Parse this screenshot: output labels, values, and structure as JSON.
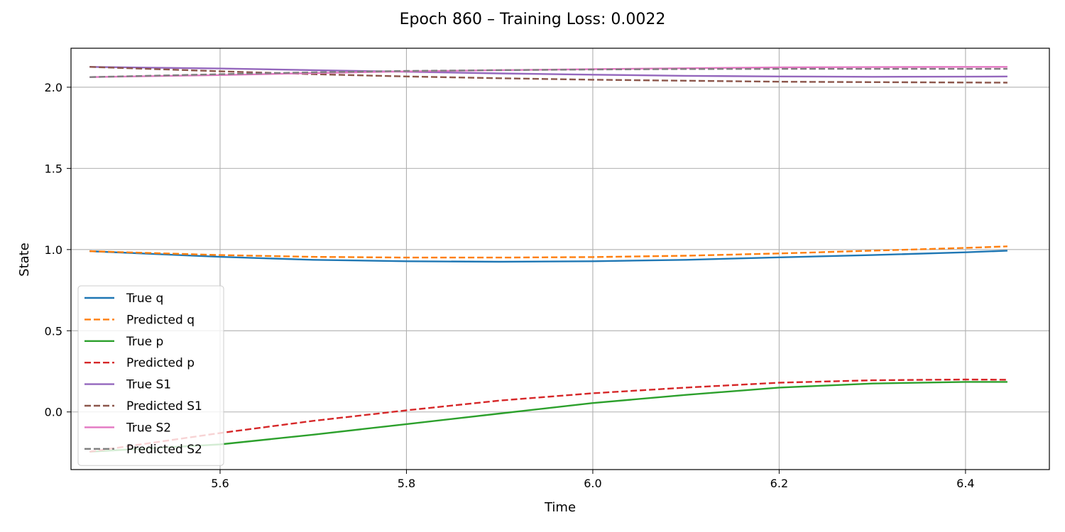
{
  "chart_data": {
    "type": "line",
    "title": "Epoch 860 – Training Loss: 0.0022",
    "xlabel": "Time",
    "ylabel": "State",
    "xlim": [
      5.44,
      6.49
    ],
    "ylim": [
      -0.355,
      2.24
    ],
    "xticks": [
      5.6,
      5.8,
      6.0,
      6.2,
      6.4
    ],
    "xtick_labels": [
      "5.6",
      "5.8",
      "6.0",
      "6.2",
      "6.4"
    ],
    "yticks": [
      0.0,
      0.5,
      1.0,
      1.5,
      2.0
    ],
    "ytick_labels": [
      "0.0",
      "0.5",
      "1.0",
      "1.5",
      "2.0"
    ],
    "grid": true,
    "legend_position": "lower-left",
    "x": [
      5.46,
      5.6,
      5.7,
      5.8,
      5.9,
      6.0,
      6.1,
      6.2,
      6.3,
      6.4,
      6.445
    ],
    "series": [
      {
        "name": "True q",
        "color": "#1f77b4",
        "dash": "solid",
        "values": [
          0.99,
          0.955,
          0.937,
          0.928,
          0.925,
          0.928,
          0.937,
          0.952,
          0.966,
          0.983,
          0.993
        ]
      },
      {
        "name": "Predicted q",
        "color": "#ff7f0e",
        "dash": "dashed",
        "values": [
          0.99,
          0.966,
          0.955,
          0.951,
          0.951,
          0.954,
          0.962,
          0.976,
          0.993,
          1.01,
          1.02
        ]
      },
      {
        "name": "True p",
        "color": "#2ca02c",
        "dash": "solid",
        "values": [
          -0.245,
          -0.2,
          -0.14,
          -0.075,
          -0.01,
          0.055,
          0.105,
          0.15,
          0.175,
          0.185,
          0.185
        ]
      },
      {
        "name": "Predicted p",
        "color": "#d62728",
        "dash": "dashed",
        "values": [
          -0.245,
          -0.13,
          -0.055,
          0.01,
          0.07,
          0.115,
          0.15,
          0.18,
          0.195,
          0.2,
          0.198
        ]
      },
      {
        "name": "True S1",
        "color": "#9467bd",
        "dash": "solid",
        "values": [
          2.125,
          2.115,
          2.105,
          2.095,
          2.085,
          2.077,
          2.07,
          2.066,
          2.064,
          2.065,
          2.066
        ]
      },
      {
        "name": "Predicted S1",
        "color": "#8c564b",
        "dash": "dashed",
        "values": [
          2.125,
          2.098,
          2.08,
          2.066,
          2.055,
          2.046,
          2.04,
          2.034,
          2.031,
          2.029,
          2.028
        ]
      },
      {
        "name": "True S2",
        "color": "#e377c2",
        "dash": "solid",
        "values": [
          2.062,
          2.075,
          2.087,
          2.097,
          2.105,
          2.111,
          2.117,
          2.122,
          2.124,
          2.125,
          2.125
        ]
      },
      {
        "name": "Predicted S2",
        "color": "#7f7f7f",
        "dash": "dashed",
        "values": [
          2.062,
          2.08,
          2.092,
          2.1,
          2.105,
          2.109,
          2.112,
          2.113,
          2.113,
          2.113,
          2.113
        ]
      }
    ]
  }
}
